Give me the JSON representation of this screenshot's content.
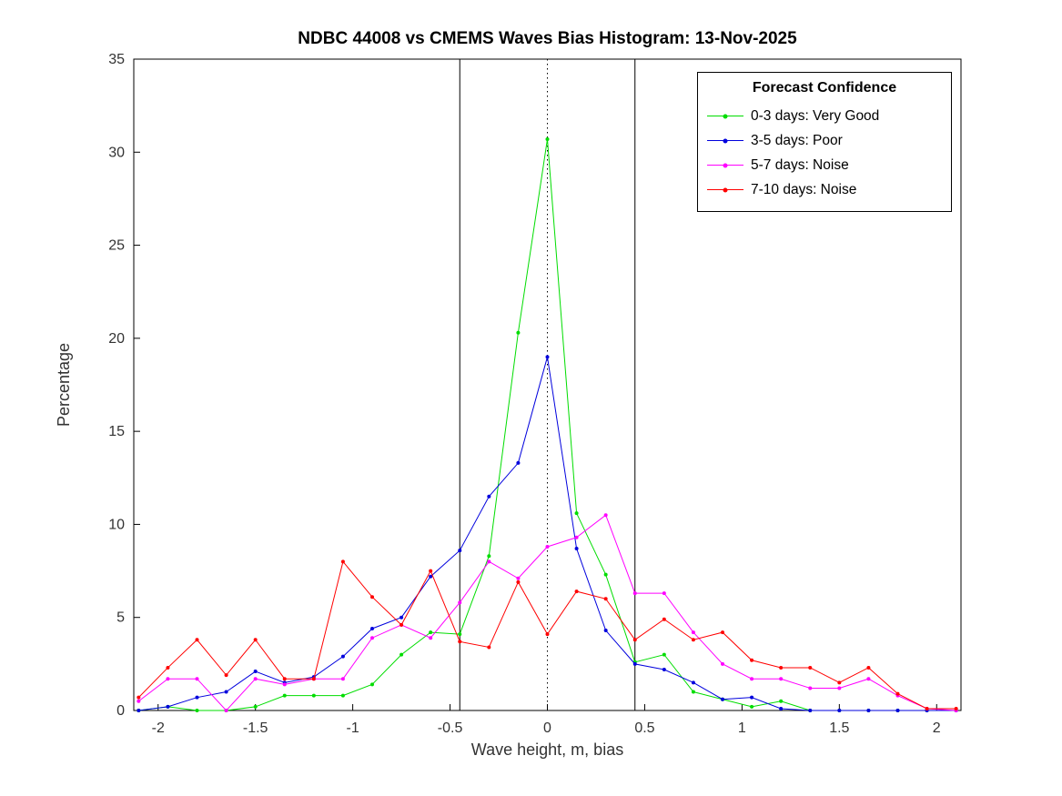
{
  "chart_data": {
    "type": "line",
    "title": "NDBC 44008 vs CMEMS Waves Bias Histogram: 13-Nov-2025",
    "xlabel": "Wave height, m, bias",
    "ylabel": "Percentage",
    "xlim": [
      -2.125,
      2.125
    ],
    "ylim": [
      0,
      35
    ],
    "xticks": [
      -2,
      -1.5,
      -1,
      -0.5,
      0,
      0.5,
      1,
      1.5,
      2
    ],
    "yticks": [
      0,
      5,
      10,
      15,
      20,
      25,
      30,
      35
    ],
    "vlines": [
      -0.45,
      0.45
    ],
    "zero_line": 0,
    "grid": false,
    "legend_title": "Forecast Confidence",
    "legend_position": "top-right",
    "axis_color": "#000000",
    "x": [
      -2.1,
      -1.95,
      -1.8,
      -1.65,
      -1.5,
      -1.35,
      -1.2,
      -1.05,
      -0.9,
      -0.75,
      -0.6,
      -0.45,
      -0.3,
      -0.15,
      0,
      0.15,
      0.3,
      0.45,
      0.6,
      0.75,
      0.9,
      1.05,
      1.2,
      1.35,
      1.5,
      1.65,
      1.8,
      1.95,
      2.1
    ],
    "series": [
      {
        "name": "0-3 days: Very Good",
        "color": "#00dd00",
        "values": [
          0,
          0.2,
          0,
          0,
          0.2,
          0.8,
          0.8,
          0.8,
          1.4,
          3.0,
          4.2,
          4.1,
          8.3,
          20.3,
          30.7,
          10.6,
          7.3,
          2.6,
          3.0,
          1.0,
          0.6,
          0.2,
          0.5,
          0,
          0,
          0,
          0,
          0,
          0
        ]
      },
      {
        "name": "3-5 days: Poor",
        "color": "#0000dd",
        "values": [
          0,
          0.2,
          0.7,
          1.0,
          2.1,
          1.5,
          1.8,
          2.9,
          4.4,
          5.0,
          7.2,
          8.6,
          11.5,
          13.3,
          19.0,
          8.7,
          4.3,
          2.5,
          2.2,
          1.5,
          0.6,
          0.7,
          0.1,
          0,
          0,
          0,
          0,
          0,
          0
        ]
      },
      {
        "name": "5-7 days: Noise",
        "color": "#ff00ff",
        "values": [
          0.5,
          1.7,
          1.7,
          0.0,
          1.7,
          1.4,
          1.7,
          1.7,
          3.9,
          4.6,
          3.9,
          5.8,
          8.0,
          7.1,
          8.8,
          9.3,
          10.5,
          6.3,
          6.3,
          4.2,
          2.5,
          1.7,
          1.7,
          1.2,
          1.2,
          1.7,
          0.8,
          0.1,
          0
        ]
      },
      {
        "name": "7-10 days: Noise",
        "color": "#ff0000",
        "values": [
          0.7,
          2.3,
          3.8,
          1.9,
          3.8,
          1.7,
          1.7,
          8.0,
          6.1,
          4.6,
          7.5,
          3.7,
          3.4,
          6.9,
          4.1,
          6.4,
          6.0,
          3.8,
          4.9,
          3.8,
          4.2,
          2.7,
          2.3,
          2.3,
          1.5,
          2.3,
          0.9,
          0.1,
          0.1
        ]
      }
    ]
  }
}
